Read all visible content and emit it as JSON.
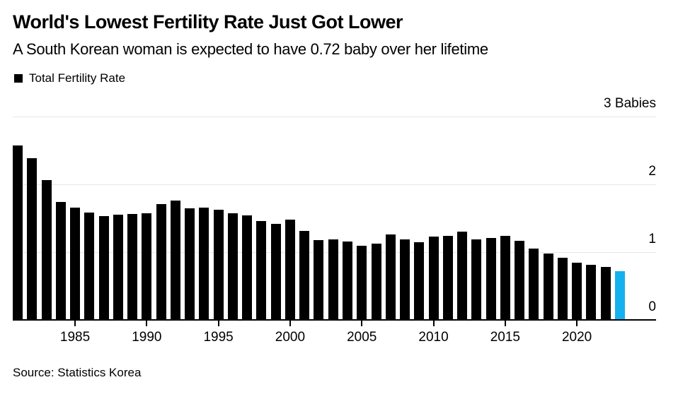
{
  "header": {
    "title": "World's Lowest Fertility Rate Just Got Lower",
    "subtitle": "A South Korean woman is expected to have 0.72 baby over her lifetime",
    "legend": {
      "label": "Total Fertility Rate",
      "swatch_color": "#000000"
    }
  },
  "chart_data": {
    "type": "bar",
    "title": "World's Lowest Fertility Rate Just Got Lower",
    "subtitle": "A South Korean woman is expected to have 0.72 baby over her lifetime",
    "series_name": "Total Fertility Rate",
    "categories": [
      1981,
      1982,
      1983,
      1984,
      1985,
      1986,
      1987,
      1988,
      1989,
      1990,
      1991,
      1992,
      1993,
      1994,
      1995,
      1996,
      1997,
      1998,
      1999,
      2000,
      2001,
      2002,
      2003,
      2004,
      2005,
      2006,
      2007,
      2008,
      2009,
      2010,
      2011,
      2012,
      2013,
      2014,
      2015,
      2016,
      2017,
      2018,
      2019,
      2020,
      2021,
      2022,
      2023
    ],
    "values": [
      2.57,
      2.39,
      2.06,
      1.74,
      1.66,
      1.58,
      1.53,
      1.55,
      1.56,
      1.57,
      1.71,
      1.76,
      1.65,
      1.66,
      1.63,
      1.57,
      1.54,
      1.46,
      1.42,
      1.48,
      1.31,
      1.18,
      1.19,
      1.16,
      1.09,
      1.13,
      1.26,
      1.19,
      1.15,
      1.23,
      1.24,
      1.3,
      1.19,
      1.21,
      1.24,
      1.17,
      1.05,
      0.98,
      0.92,
      0.84,
      0.81,
      0.78,
      0.72
    ],
    "ylim": [
      0,
      3
    ],
    "yticks": [
      0,
      1,
      2,
      3
    ],
    "ytick_labels": [
      "0",
      "1",
      "2",
      "3 Babies"
    ],
    "x_tick_years": [
      1985,
      1990,
      1995,
      2000,
      2005,
      2010,
      2015,
      2020
    ],
    "grid": true,
    "legend_position": "top-left",
    "bar_color": "#000000",
    "highlight_index": 42,
    "highlight_color": "#14b1ef",
    "grid_color": "#e7e7e7",
    "axis_color": "#000000",
    "xlabel": "",
    "ylabel": "Babies"
  },
  "footer": {
    "source": "Source: Statistics Korea"
  }
}
